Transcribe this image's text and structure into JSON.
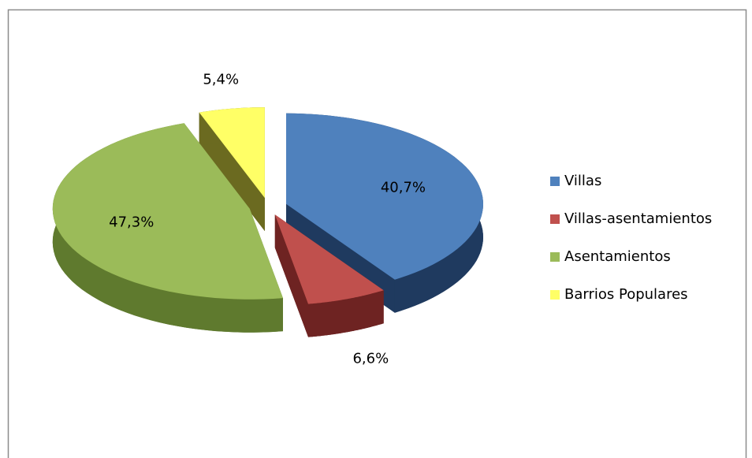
{
  "chart_data": {
    "type": "pie",
    "categories": [
      "Villas",
      "Villas-asentamientos",
      "Asentamientos",
      "Barrios Populares"
    ],
    "values": [
      40.7,
      6.6,
      47.3,
      5.4
    ],
    "value_labels": [
      "40,7%",
      "6,6%",
      "47,3%",
      "5,4%"
    ],
    "colors": [
      "#4f81bd",
      "#c0504d",
      "#9bbb59",
      "#ffff66"
    ],
    "side_colors": [
      "#1f3a5f",
      "#6e2322",
      "#5f7a2e",
      "#6b6a20"
    ],
    "legend": "right"
  }
}
